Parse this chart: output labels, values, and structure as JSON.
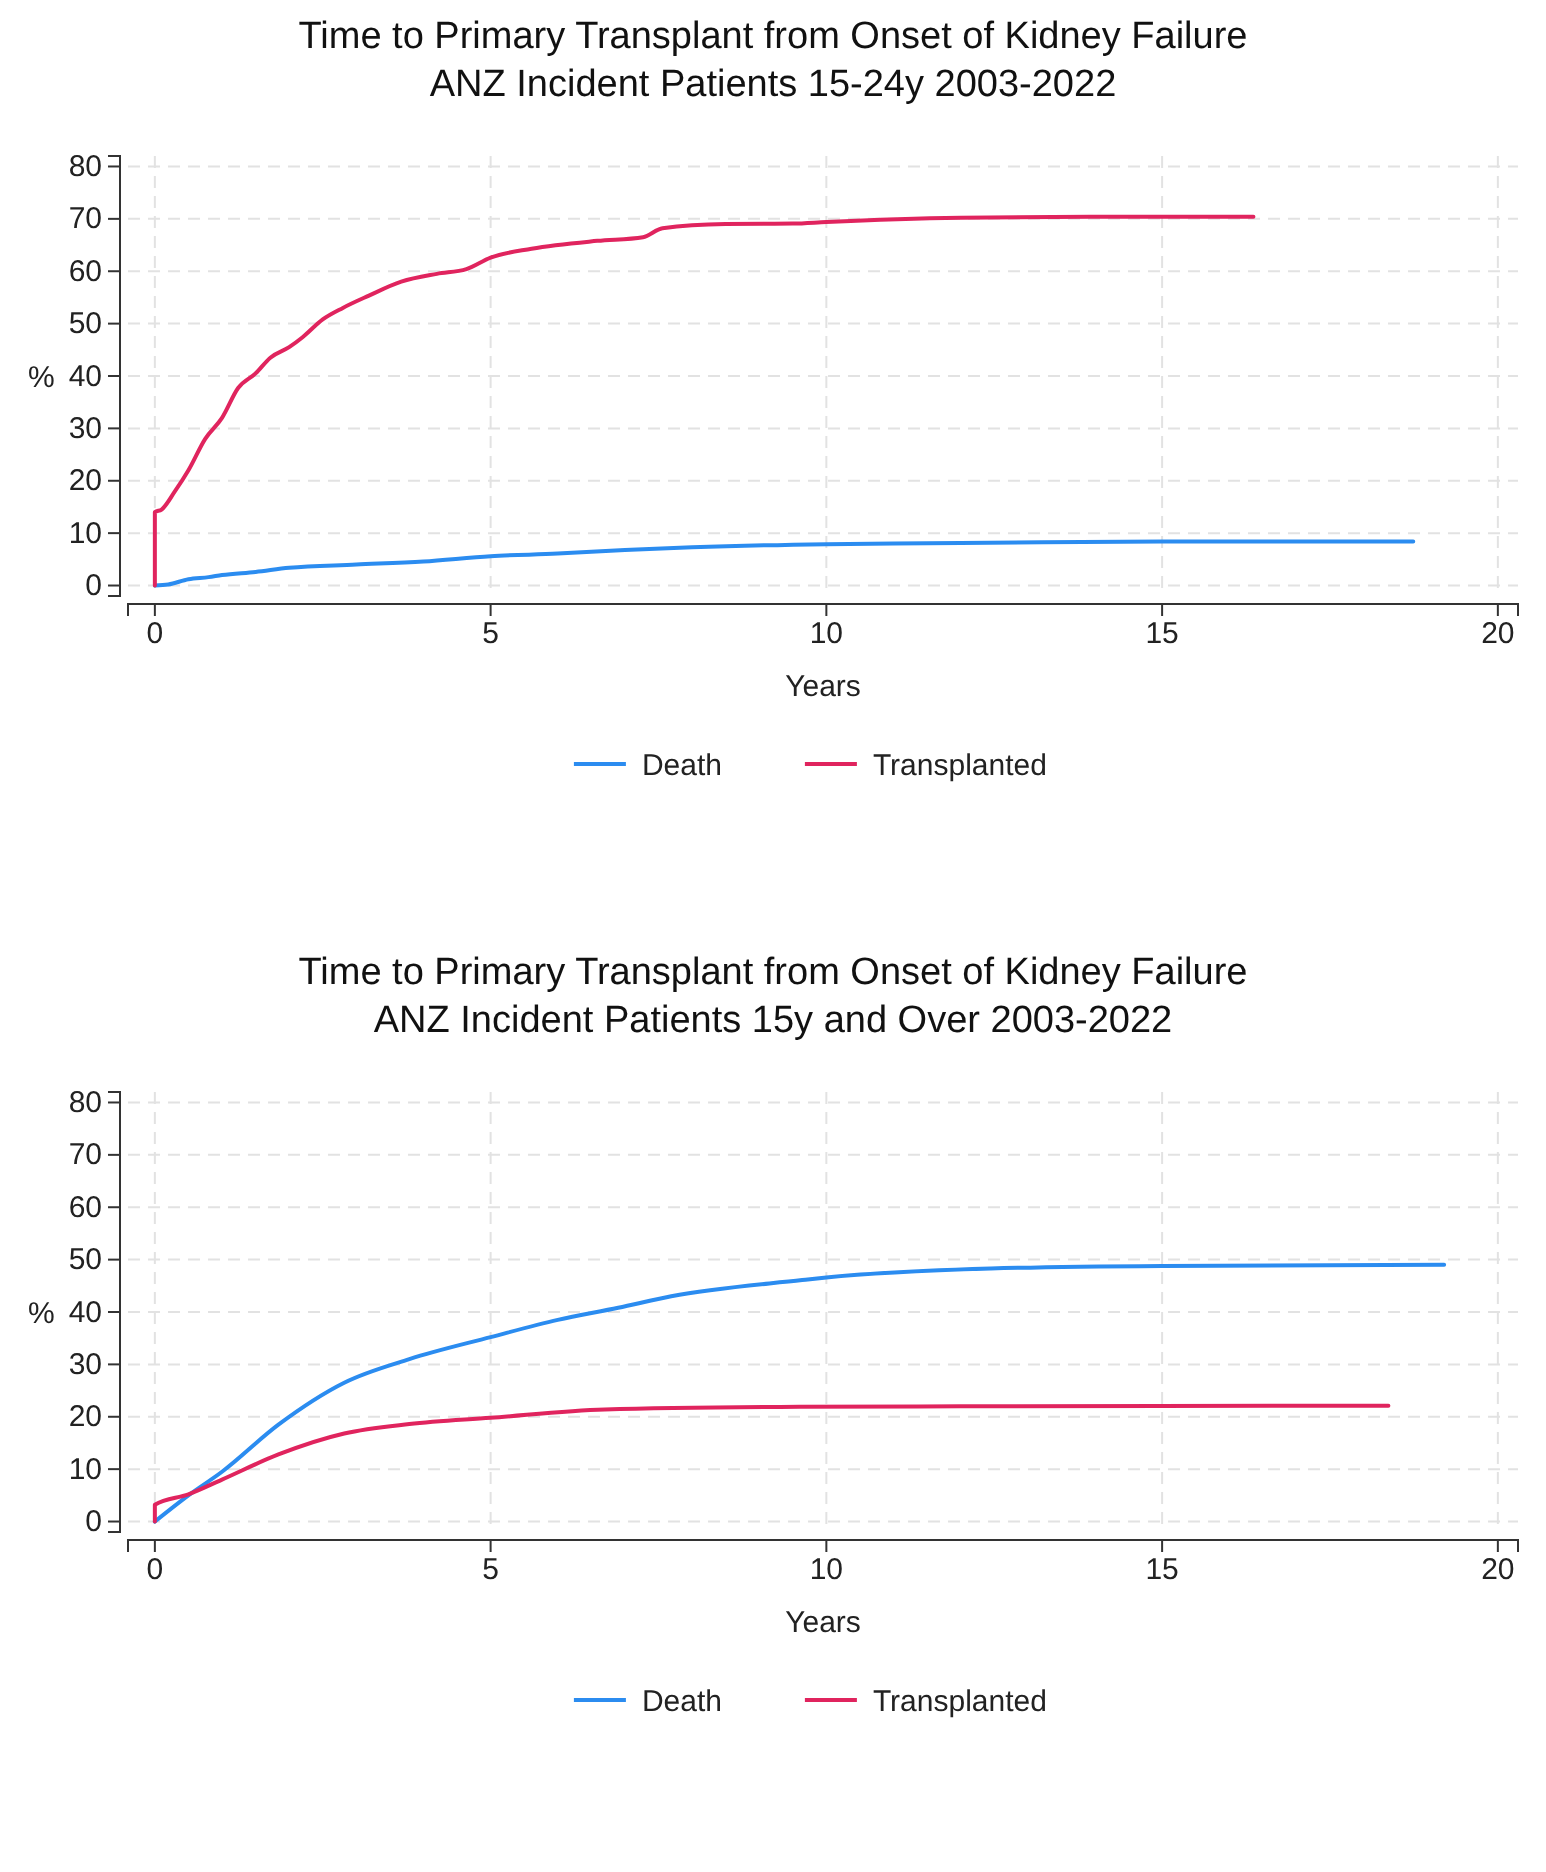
{
  "chart_data": [
    {
      "type": "line",
      "title": "Time to Primary Transplant from Onset of Kidney Failure\nANZ Incident Patients 15-24y 2003-2022",
      "xlabel": "Years",
      "ylabel": "%",
      "xlim": [
        -0.4,
        20.3
      ],
      "ylim": [
        -2,
        82
      ],
      "xticks": [
        0,
        5,
        10,
        15,
        20
      ],
      "yticks": [
        0,
        10,
        20,
        30,
        40,
        50,
        60,
        70,
        80
      ],
      "grid": true,
      "legend": "bottom",
      "line_style": "solid",
      "series": [
        {
          "name": "Death",
          "color": "#2b8cf0",
          "x": [
            0,
            0.2,
            0.5,
            0.8,
            1,
            1.5,
            2,
            3,
            4,
            5,
            6,
            7,
            8,
            10,
            12,
            15,
            18.74
          ],
          "values": [
            0,
            0.2,
            1.2,
            1.6,
            2,
            2.6,
            3.4,
            4,
            4.6,
            5.6,
            6.1,
            6.8,
            7.3,
            7.9,
            8.1,
            8.4,
            8.4
          ]
        },
        {
          "name": "Transplanted",
          "color": "#e0245e",
          "x": [
            0,
            0,
            0.1,
            0.3,
            0.5,
            0.75,
            1,
            1.24,
            1.5,
            1.72,
            2,
            2.2,
            2.5,
            2.8,
            3.18,
            3.67,
            4.2,
            4.64,
            5,
            5.61,
            6.59,
            7.27,
            7.56,
            8.5,
            9.5,
            10,
            12,
            14,
            16.36
          ],
          "values": [
            0,
            14,
            14.5,
            18,
            22,
            28,
            32,
            37.7,
            40.5,
            43.5,
            45.5,
            47.4,
            50.8,
            53,
            55.3,
            58,
            59.5,
            60.4,
            62.6,
            64.3,
            65.8,
            66.5,
            68.2,
            69,
            69.1,
            69.4,
            70.2,
            70.4,
            70.4
          ]
        }
      ]
    },
    {
      "type": "line",
      "title": "Time to Primary Transplant from Onset of Kidney Failure\nANZ Incident Patients 15y and Over 2003-2022",
      "xlabel": "Years",
      "ylabel": "%",
      "xlim": [
        -0.4,
        20.3
      ],
      "ylim": [
        -2,
        82
      ],
      "xticks": [
        0,
        5,
        10,
        15,
        20
      ],
      "yticks": [
        0,
        10,
        20,
        30,
        40,
        50,
        60,
        70,
        80
      ],
      "grid": true,
      "legend": "bottom",
      "line_style": "solid",
      "series": [
        {
          "name": "Death",
          "color": "#2b8cf0",
          "x": [
            0,
            0.5,
            1,
            1.84,
            2.82,
            3.79,
            5,
            6,
            6.9,
            7.69,
            9.64,
            10,
            12.45,
            15,
            19.2
          ],
          "values": [
            0,
            5,
            9.5,
            18.5,
            26.5,
            31,
            35.2,
            38.5,
            40.8,
            43,
            46.1,
            46.6,
            48.3,
            48.8,
            49
          ]
        },
        {
          "name": "Transplanted",
          "color": "#e0245e",
          "x": [
            0,
            0,
            0.5,
            1,
            1.84,
            2.82,
            3.79,
            5,
            6.7,
            9.6,
            12,
            18.37
          ],
          "values": [
            0,
            3.2,
            5.2,
            8,
            12.8,
            16.8,
            18.6,
            19.8,
            21.4,
            21.9,
            22,
            22.1
          ]
        }
      ]
    }
  ]
}
